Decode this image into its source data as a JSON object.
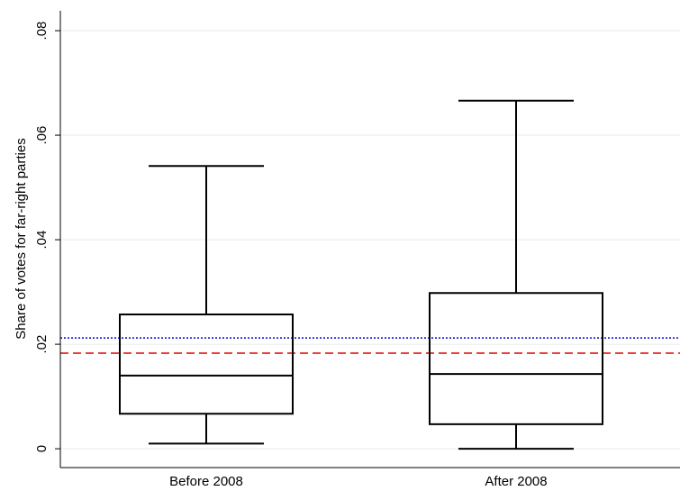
{
  "chart_data": {
    "type": "box",
    "y_label": "Share of votes for far-right parties",
    "categories": [
      "Before 2008",
      "After 2008"
    ],
    "boxes": [
      {
        "min": 0.001,
        "q1": 0.0067,
        "median": 0.014,
        "q3": 0.0257,
        "max": 0.0541
      },
      {
        "min": 0.0,
        "q1": 0.0047,
        "median": 0.0143,
        "q3": 0.0298,
        "max": 0.0666
      }
    ],
    "box_color": "#000000",
    "reference_lines": [
      {
        "value": 0.0212,
        "color": "#0000cc",
        "style": "dotted"
      },
      {
        "value": 0.0183,
        "color": "#e00000",
        "style": "dashed"
      }
    ],
    "ylim": [
      -0.0036,
      0.0838
    ],
    "yticks": [
      0,
      {
        "value": 0.02,
        "label": ".02"
      },
      {
        "value": 0.04,
        "label": ".04"
      },
      {
        "value": 0.06,
        "label": ".06"
      },
      {
        "value": 0.08,
        "label": ".08"
      }
    ],
    "grid": true
  }
}
